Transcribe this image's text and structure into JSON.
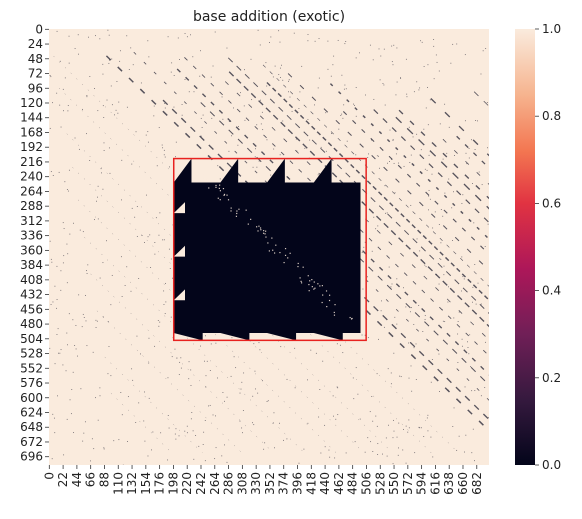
{
  "chart_data": {
    "type": "heatmap",
    "title": "base addition (exotic)",
    "xlabel": "",
    "ylabel": "",
    "x_ticks": [
      "0",
      "22",
      "44",
      "66",
      "88",
      "110",
      "132",
      "154",
      "176",
      "198",
      "220",
      "242",
      "264",
      "286",
      "308",
      "330",
      "352",
      "374",
      "396",
      "418",
      "440",
      "462",
      "484",
      "506",
      "528",
      "550",
      "572",
      "594",
      "616",
      "638",
      "660",
      "682"
    ],
    "y_ticks": [
      "0",
      "24",
      "48",
      "72",
      "96",
      "120",
      "144",
      "168",
      "192",
      "216",
      "240",
      "264",
      "288",
      "312",
      "336",
      "360",
      "384",
      "408",
      "432",
      "456",
      "480",
      "504",
      "528",
      "552",
      "576",
      "600",
      "624",
      "648",
      "672",
      "696"
    ],
    "n_rows": 710,
    "n_cols": 702,
    "colorbar": {
      "ticks": [
        "0.0",
        "0.2",
        "0.4",
        "0.6",
        "0.8",
        "1.0"
      ],
      "vmin": 0.0,
      "vmax": 1.0,
      "low_color": "#03051a",
      "high_color": "#faebdd"
    },
    "highlight_box": {
      "row_range": [
        211,
        507
      ],
      "col_range": [
        199,
        506
      ],
      "color": "#e8221f"
    },
    "dark_region": {
      "row_range": [
        211,
        495
      ],
      "col_range": [
        199,
        497
      ],
      "value": 0.0
    },
    "background_value": 1.0,
    "structure": "mostly value 1.0 with sparse dark diagonal streaks below-right of main diagonal; dense dark block with triangular notches on upper and lower edges inside highlighted box"
  }
}
